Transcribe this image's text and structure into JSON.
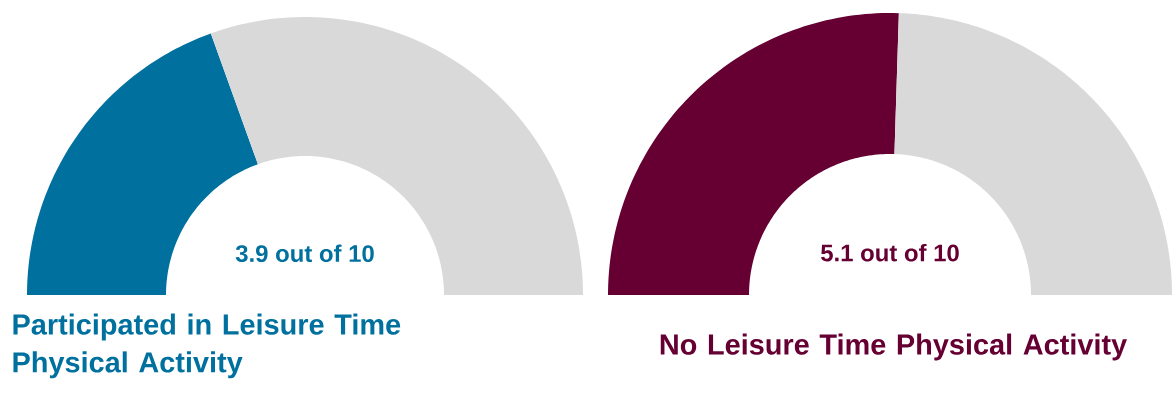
{
  "chart_data": [
    {
      "type": "donut",
      "title": "Participated in Leisure Time Physical Activity",
      "categories": [
        null,
        null
      ],
      "values": [
        39,
        61
      ],
      "colors": [
        "#00709f",
        "#d9d9d9"
      ],
      "annotations": [
        "3.9 out of 10"
      ]
    },
    {
      "type": "donut",
      "title": "No Leisure Time Physical Activity",
      "categories": [
        null,
        null
      ],
      "values": [
        51,
        49
      ],
      "colors": [
        "#660033",
        "#d9d9d9"
      ],
      "annotations": [
        "5.1 out of 10"
      ]
    }
  ]
}
